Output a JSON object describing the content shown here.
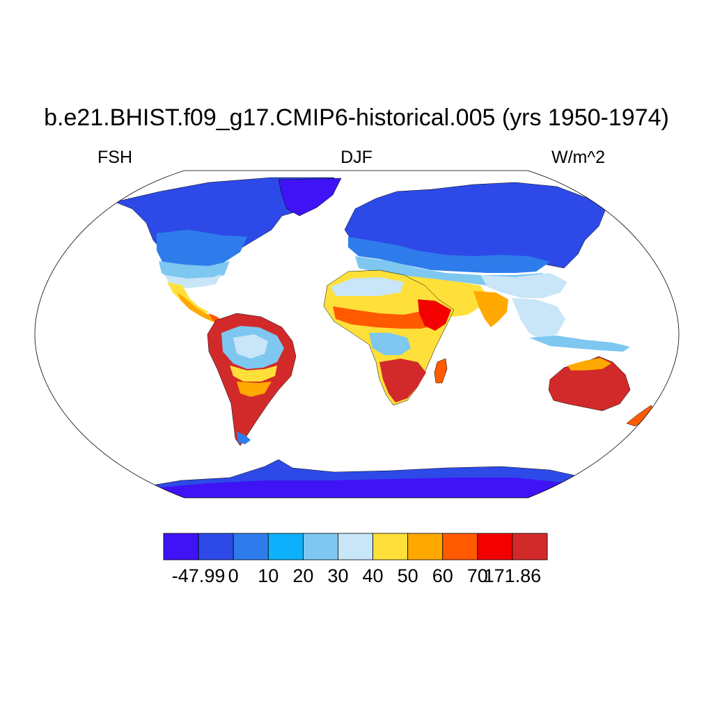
{
  "header": {
    "title": "b.e21.BHIST.f09_g17.CMIP6-historical.005 (yrs 1950-1974)",
    "left": "FSH",
    "center": "DJF",
    "right": "W/m^2"
  },
  "colorbar": {
    "colors": [
      "#3f13f5",
      "#2d4ae8",
      "#2e7cec",
      "#0db0fa",
      "#7dc7f0",
      "#c8e6f8",
      "#ffe03a",
      "#ffa800",
      "#ff5a00",
      "#f30000",
      "#d22a2a"
    ],
    "labels": [
      "-47.99",
      "0",
      "10",
      "20",
      "30",
      "40",
      "50",
      "60",
      "70",
      "171.86"
    ]
  },
  "map": {
    "projection": "robinson",
    "ocean_color": "#ffffff"
  }
}
